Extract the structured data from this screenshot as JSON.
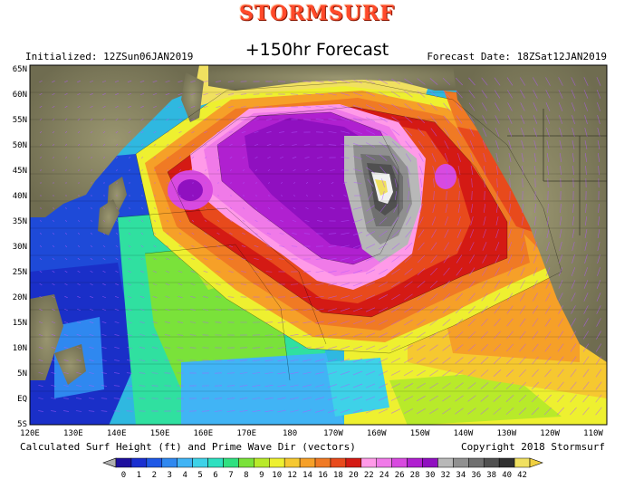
{
  "header": {
    "brand": "STORMSURF",
    "title": "+150hr Forecast",
    "initialized": "Initialized: 12ZSun06JAN2019",
    "forecast_date": "Forecast Date: 18ZSat12JAN2019"
  },
  "footer": {
    "caption": "Calculated Surf Height (ft) and Prime Wave Dir (vectors)",
    "copyright": "Copyright 2018 Stormsurf"
  },
  "map": {
    "lon_labels": [
      "120E",
      "130E",
      "140E",
      "150E",
      "160E",
      "170E",
      "180",
      "170W",
      "160W",
      "150W",
      "140W",
      "130W",
      "120W",
      "110W"
    ],
    "lat_labels": [
      "65N",
      "60N",
      "55N",
      "50N",
      "45N",
      "40N",
      "35N",
      "30N",
      "25N",
      "20N",
      "15N",
      "10N",
      "5N",
      "EQ",
      "5S"
    ]
  },
  "colorbar": {
    "labels": [
      "0",
      "1",
      "2",
      "3",
      "4",
      "5",
      "6",
      "7",
      "8",
      "9",
      "10",
      "12",
      "14",
      "16",
      "18",
      "20",
      "22",
      "24",
      "26",
      "28",
      "30",
      "32",
      "34",
      "36",
      "38",
      "40",
      "42"
    ],
    "colors": [
      "#1e0f9e",
      "#1a2fd0",
      "#1e58e6",
      "#2f88f0",
      "#41b4f5",
      "#3ed2e8",
      "#2ee0c0",
      "#30e080",
      "#7ae23a",
      "#b8ea2a",
      "#eef030",
      "#f6c830",
      "#f6a028",
      "#f07a24",
      "#e84a1c",
      "#d41a14",
      "#ff9ae8",
      "#f07ae8",
      "#d84ae0",
      "#b020d0",
      "#9010c0",
      "#b8b8b8",
      "#909090",
      "#707070",
      "#505050",
      "#303030",
      "#f0e060"
    ],
    "left_arrow_color": "#b0b0b0",
    "right_arrow_color": "#f0d040"
  },
  "colors": {
    "land": "#8a8a6a",
    "ocean_deep_blue": "#1a3fd8",
    "storm_core": "#7a7a7a"
  }
}
